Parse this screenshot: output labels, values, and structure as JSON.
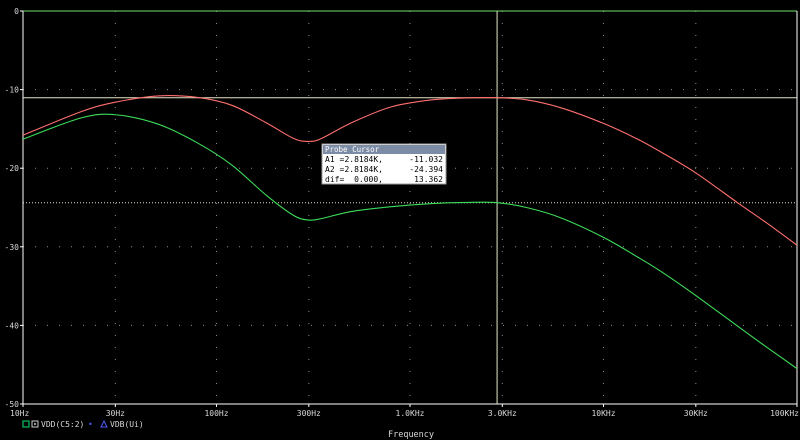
{
  "plot": {
    "x_axis_label": "Frequency",
    "background": "#000000",
    "axis_color": "#ffffff",
    "grid_color": "#8c8c8c",
    "cursor_color": "#e6e6c8"
  },
  "legend": [
    {
      "marker": "square",
      "label": "VDD(C5:2)",
      "color": "#00e676"
    },
    {
      "marker": "triangle",
      "label": "VDB(Ui)",
      "color": "#4a5cff"
    }
  ],
  "probe": {
    "title": "Probe Cursor",
    "rows": [
      {
        "name": "A1 =",
        "x": "2.8184K,",
        "y": "-11.032"
      },
      {
        "name": "A2 =",
        "x": "2.8184K,",
        "y": "-24.394"
      },
      {
        "name": "dif=",
        "x": "0.000,",
        "y": "13.362"
      }
    ]
  },
  "chart_data": {
    "type": "line",
    "title": "",
    "xlabel": "Frequency",
    "ylabel": "",
    "x_scale": "log",
    "xlim": [
      10,
      100000
    ],
    "ylim": [
      -50,
      0
    ],
    "x_ticks": [
      {
        "value": 10,
        "label": "10Hz"
      },
      {
        "value": 30,
        "label": "30Hz"
      },
      {
        "value": 100,
        "label": "100Hz"
      },
      {
        "value": 300,
        "label": "300Hz"
      },
      {
        "value": 1000,
        "label": "1.0KHz"
      },
      {
        "value": 3000,
        "label": "3.0KHz"
      },
      {
        "value": 10000,
        "label": "10KHz"
      },
      {
        "value": 30000,
        "label": "30KHz"
      },
      {
        "value": 100000,
        "label": "100KHz"
      }
    ],
    "y_ticks": [
      {
        "value": 0,
        "label": "0"
      },
      {
        "value": -10,
        "label": "-10"
      },
      {
        "value": -20,
        "label": "-20"
      },
      {
        "value": -30,
        "label": "-30"
      },
      {
        "value": -40,
        "label": "-40"
      },
      {
        "value": -50,
        "label": "-50"
      }
    ],
    "grid": true,
    "series": [
      {
        "name": "VDB(Ui)",
        "color": "#ff6f6f",
        "x": [
          10,
          20,
          30,
          50,
          80,
          120,
          180,
          250,
          300,
          350,
          500,
          800,
          1300,
          2000,
          2818,
          4000,
          6000,
          10000,
          15000,
          20000,
          30000,
          50000,
          70000,
          100000
        ],
        "y": [
          -15.8,
          -12.8,
          -11.6,
          -10.8,
          -11.0,
          -12.0,
          -14.2,
          -16.2,
          -16.6,
          -16.2,
          -14.2,
          -12.2,
          -11.3,
          -11.05,
          -11.03,
          -11.3,
          -12.3,
          -14.3,
          -16.3,
          -18.0,
          -20.6,
          -24.5,
          -27.0,
          -29.8
        ]
      },
      {
        "name": "VDD(C5:2)",
        "color": "#3ddc5a",
        "x": [
          10,
          20,
          30,
          50,
          80,
          120,
          180,
          250,
          300,
          350,
          500,
          800,
          1300,
          2000,
          2818,
          4000,
          6000,
          10000,
          15000,
          20000,
          30000,
          50000,
          70000,
          100000
        ],
        "y": [
          -16.3,
          -13.6,
          -13.2,
          -14.4,
          -16.8,
          -19.6,
          -23.4,
          -26.0,
          -26.6,
          -26.4,
          -25.5,
          -24.9,
          -24.5,
          -24.35,
          -24.39,
          -25.0,
          -26.3,
          -28.8,
          -31.3,
          -33.2,
          -36.2,
          -40.2,
          -42.8,
          -45.5
        ]
      }
    ],
    "cursors": {
      "x": 2818.4,
      "a1": -11.032,
      "a2": -24.394
    }
  }
}
